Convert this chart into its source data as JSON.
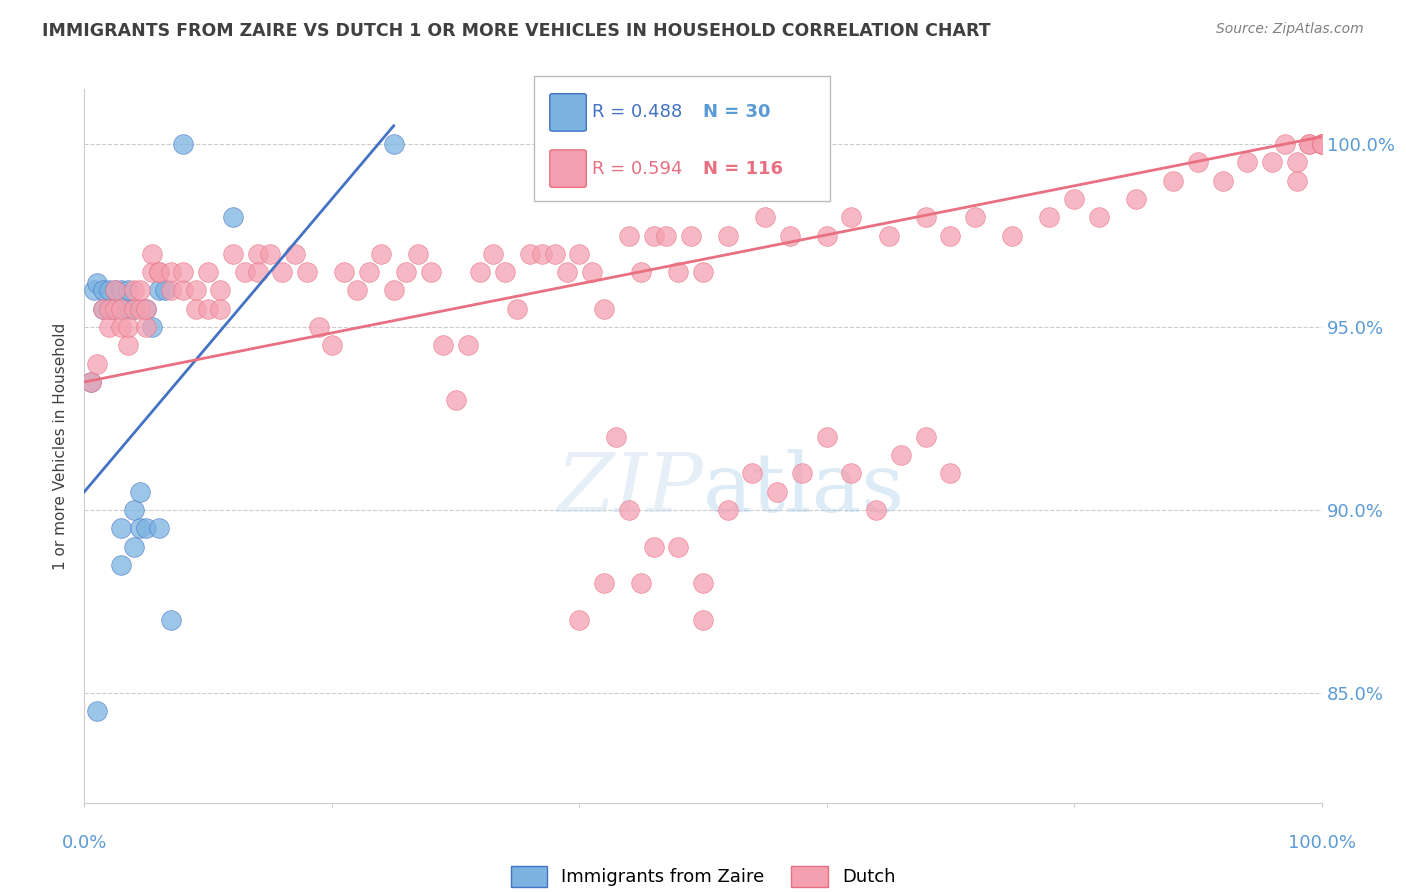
{
  "title": "IMMIGRANTS FROM ZAIRE VS DUTCH 1 OR MORE VEHICLES IN HOUSEHOLD CORRELATION CHART",
  "source": "Source: ZipAtlas.com",
  "ylabel": "1 or more Vehicles in Household",
  "yticks": [
    85.0,
    90.0,
    95.0,
    100.0
  ],
  "xlim": [
    0.0,
    1.0
  ],
  "ylim": [
    82.0,
    101.5
  ],
  "legend_blue_r": "0.488",
  "legend_blue_n": "30",
  "legend_pink_r": "0.594",
  "legend_pink_n": "116",
  "scatter_blue": {
    "x": [
      0.005,
      0.008,
      0.01,
      0.01,
      0.015,
      0.015,
      0.02,
      0.02,
      0.025,
      0.025,
      0.03,
      0.03,
      0.03,
      0.035,
      0.035,
      0.04,
      0.04,
      0.04,
      0.045,
      0.045,
      0.05,
      0.05,
      0.055,
      0.06,
      0.06,
      0.065,
      0.07,
      0.08,
      0.12,
      0.25
    ],
    "y": [
      93.5,
      96.0,
      84.5,
      96.2,
      95.5,
      96.0,
      95.5,
      96.0,
      95.5,
      96.0,
      88.5,
      89.5,
      96.0,
      95.5,
      96.0,
      89.0,
      90.0,
      95.5,
      89.5,
      90.5,
      89.5,
      95.5,
      95.0,
      89.5,
      96.0,
      96.0,
      87.0,
      100.0,
      98.0,
      100.0
    ]
  },
  "scatter_pink": {
    "x": [
      0.005,
      0.01,
      0.015,
      0.02,
      0.02,
      0.025,
      0.025,
      0.03,
      0.03,
      0.035,
      0.035,
      0.04,
      0.04,
      0.045,
      0.045,
      0.05,
      0.05,
      0.055,
      0.055,
      0.06,
      0.06,
      0.07,
      0.07,
      0.08,
      0.08,
      0.09,
      0.09,
      0.1,
      0.1,
      0.11,
      0.11,
      0.12,
      0.13,
      0.14,
      0.14,
      0.15,
      0.16,
      0.17,
      0.18,
      0.19,
      0.2,
      0.21,
      0.22,
      0.23,
      0.24,
      0.25,
      0.26,
      0.27,
      0.28,
      0.29,
      0.3,
      0.31,
      0.32,
      0.33,
      0.34,
      0.35,
      0.36,
      0.37,
      0.38,
      0.39,
      0.4,
      0.41,
      0.42,
      0.43,
      0.44,
      0.45,
      0.46,
      0.47,
      0.48,
      0.49,
      0.5,
      0.52,
      0.55,
      0.57,
      0.6,
      0.62,
      0.65,
      0.68,
      0.7,
      0.72,
      0.75,
      0.78,
      0.8,
      0.82,
      0.85,
      0.88,
      0.9,
      0.92,
      0.94,
      0.96,
      0.97,
      0.98,
      0.98,
      0.99,
      0.99,
      1.0,
      1.0,
      1.0,
      0.4,
      0.42,
      0.44,
      0.46,
      0.48,
      0.5,
      0.52,
      0.54,
      0.56,
      0.58,
      0.6,
      0.62,
      0.64,
      0.66,
      0.68,
      0.7,
      0.45,
      0.5
    ],
    "y": [
      93.5,
      94.0,
      95.5,
      95.0,
      95.5,
      95.5,
      96.0,
      95.0,
      95.5,
      94.5,
      95.0,
      95.5,
      96.0,
      95.5,
      96.0,
      95.0,
      95.5,
      96.5,
      97.0,
      96.5,
      96.5,
      96.0,
      96.5,
      96.0,
      96.5,
      95.5,
      96.0,
      95.5,
      96.5,
      95.5,
      96.0,
      97.0,
      96.5,
      97.0,
      96.5,
      97.0,
      96.5,
      97.0,
      96.5,
      95.0,
      94.5,
      96.5,
      96.0,
      96.5,
      97.0,
      96.0,
      96.5,
      97.0,
      96.5,
      94.5,
      93.0,
      94.5,
      96.5,
      97.0,
      96.5,
      95.5,
      97.0,
      97.0,
      97.0,
      96.5,
      97.0,
      96.5,
      95.5,
      92.0,
      97.5,
      96.5,
      97.5,
      97.5,
      96.5,
      97.5,
      96.5,
      97.5,
      98.0,
      97.5,
      97.5,
      98.0,
      97.5,
      98.0,
      97.5,
      98.0,
      97.5,
      98.0,
      98.5,
      98.0,
      98.5,
      99.0,
      99.5,
      99.0,
      99.5,
      99.5,
      100.0,
      99.0,
      99.5,
      100.0,
      100.0,
      100.0,
      100.0,
      100.0,
      87.0,
      88.0,
      90.0,
      89.0,
      89.0,
      88.0,
      90.0,
      91.0,
      90.5,
      91.0,
      92.0,
      91.0,
      90.0,
      91.5,
      92.0,
      91.0,
      88.0,
      87.0
    ]
  },
  "blue_line": {
    "x0": 0.0,
    "y0": 90.5,
    "x1": 0.25,
    "y1": 100.5
  },
  "pink_line": {
    "x0": 0.0,
    "y0": 93.5,
    "x1": 1.0,
    "y1": 100.2
  },
  "color_blue": "#7ab3e0",
  "color_pink": "#f4a0b0",
  "color_blue_line": "#4472C4",
  "color_pink_line": "#E87080",
  "color_ticks": "#5B9BD5",
  "title_color": "#404040",
  "source_color": "#808080",
  "grid_color": "#cccccc"
}
